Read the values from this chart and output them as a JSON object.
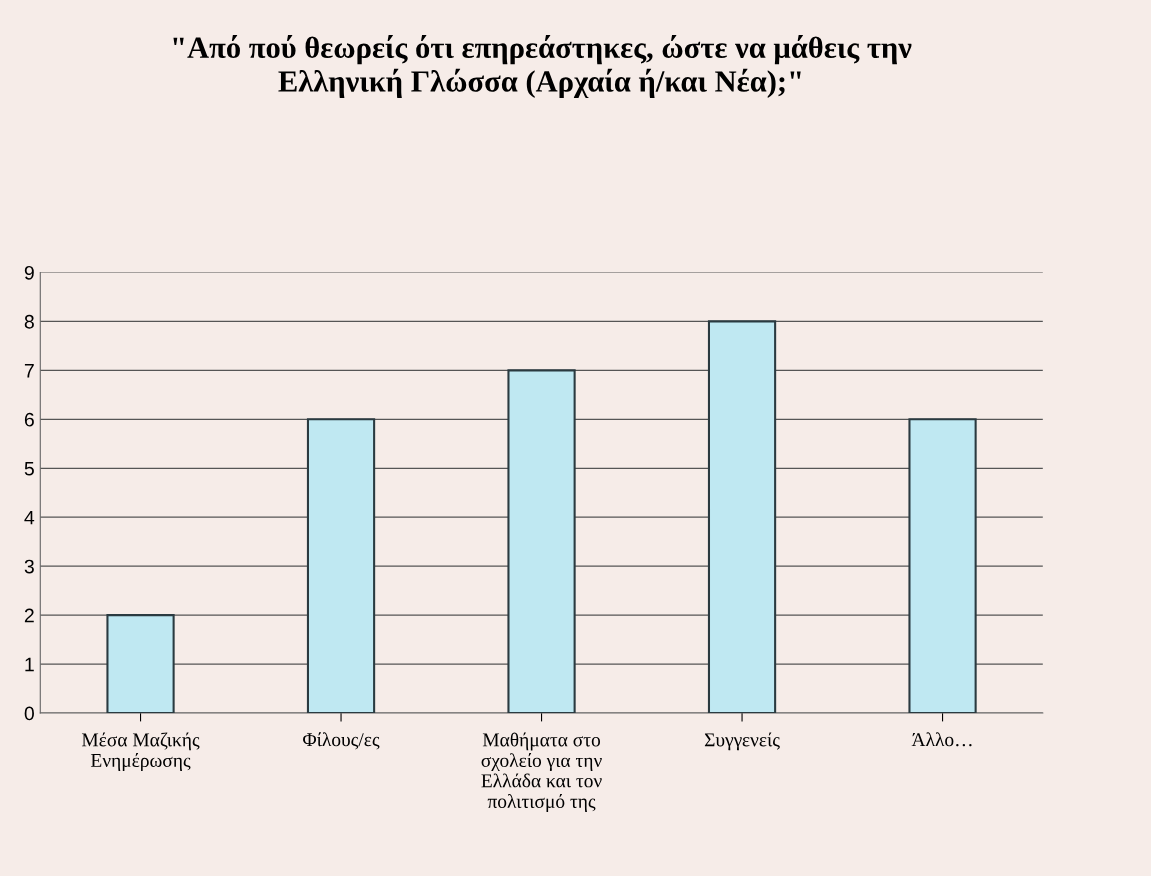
{
  "chart_data": {
    "type": "bar",
    "title": "\"Από πού θεωρείς ότι επηρεάστηκες, ώστε να μάθεις την\nΕλληνική Γλώσσα (Αρχαία ή/και Νέα);\"",
    "categories": [
      "Μέσα Μαζικής\nΕνημέρωσης",
      "Φίλους/ες",
      "Μαθήματα στο\nσχολείο για την\nΕλλάδα και τον\nπολιτισμό της",
      "Συγγενείς",
      "Άλλο…"
    ],
    "values": [
      2,
      6,
      7,
      8,
      6
    ],
    "color": "#bfe8f2",
    "ylim": [
      0,
      9
    ],
    "yticks": [
      0,
      1,
      2,
      3,
      4,
      5,
      6,
      7,
      8,
      9
    ],
    "grid": "y",
    "legend": false
  }
}
